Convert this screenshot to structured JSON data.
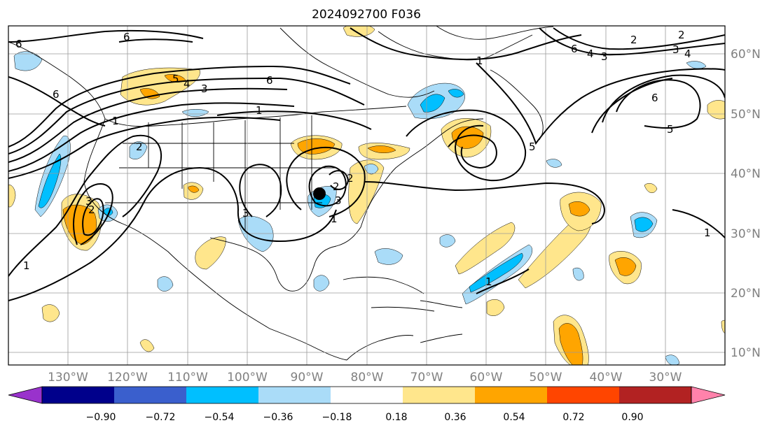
{
  "title": "2024092700 F036",
  "lon_labels": [
    "130°W",
    "120°W",
    "110°W",
    "100°W",
    "90°W",
    "80°W",
    "70°W",
    "60°W",
    "50°W",
    "40°W",
    "30°W"
  ],
  "lat_labels": [
    "60°N",
    "50°N",
    "40°N",
    "30°N",
    "20°N",
    "10°N"
  ],
  "colorbar": {
    "tick_labels": [
      "−0.90",
      "−0.72",
      "−0.54",
      "−0.36",
      "−0.18",
      "0.18",
      "0.36",
      "0.54",
      "0.72",
      "0.90"
    ],
    "colors": [
      "#9932cc",
      "#00008b",
      "#3a5fcd",
      "#00bfff",
      "#aadcf8",
      "#ffffff",
      "#ffe68c",
      "#ffa500",
      "#ff4500",
      "#b22222",
      "#ff82ab"
    ]
  },
  "contour_labels": [
    "6",
    "6",
    "6",
    "5",
    "4",
    "3",
    "6",
    "1",
    "1",
    "2",
    "3",
    "2",
    "1",
    "3",
    "2",
    "3",
    "2",
    "1",
    "1",
    "1",
    "2",
    "5",
    "6",
    "4",
    "3",
    "2",
    "3",
    "4",
    "6",
    "5",
    "1"
  ],
  "marker": {
    "label": "storm center",
    "color": "#000000"
  }
}
